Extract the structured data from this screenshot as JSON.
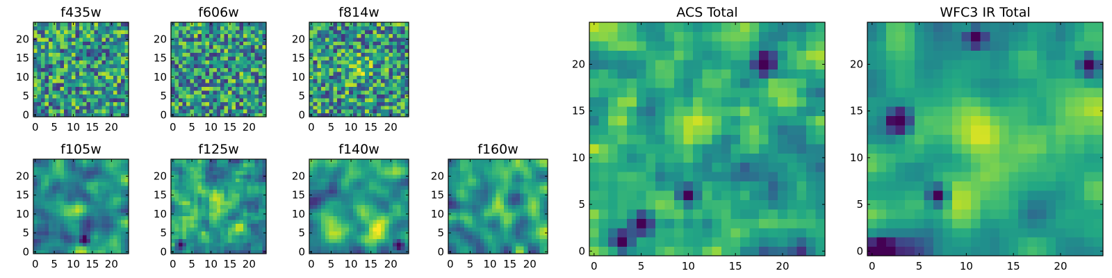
{
  "chart_data": [
    {
      "type": "heatmap",
      "title": "f435w",
      "colormap": "viridis",
      "grid_size": 25,
      "xlim": [
        0,
        24
      ],
      "ylim": [
        0,
        24
      ],
      "xticks": [
        0,
        5,
        10,
        15,
        20
      ],
      "yticks": [
        0,
        5,
        10,
        15,
        20
      ],
      "smoothness": 0,
      "bright_spot": null,
      "dark_spots": [],
      "seed": 11
    },
    {
      "type": "heatmap",
      "title": "f606w",
      "colormap": "viridis",
      "grid_size": 25,
      "xlim": [
        0,
        24
      ],
      "ylim": [
        0,
        24
      ],
      "xticks": [
        0,
        5,
        10,
        15,
        20
      ],
      "yticks": [
        0,
        5,
        10,
        15,
        20
      ],
      "smoothness": 0,
      "bright_spot": null,
      "dark_spots": [],
      "seed": 23
    },
    {
      "type": "heatmap",
      "title": "f814w",
      "colormap": "viridis",
      "grid_size": 25,
      "xlim": [
        0,
        24
      ],
      "ylim": [
        0,
        24
      ],
      "xticks": [
        0,
        5,
        10,
        15,
        20
      ],
      "yticks": [
        0,
        5,
        10,
        15,
        20
      ],
      "smoothness": 0,
      "bright_spot": [
        12,
        12
      ],
      "dark_spots": [],
      "seed": 37
    },
    {
      "type": "heatmap",
      "title": "f105w",
      "colormap": "viridis",
      "grid_size": 25,
      "xlim": [
        0,
        24
      ],
      "ylim": [
        0,
        24
      ],
      "xticks": [
        0,
        5,
        10,
        15,
        20
      ],
      "yticks": [
        0,
        5,
        10,
        15,
        20
      ],
      "smoothness": 2,
      "bright_spot": [
        11,
        11
      ],
      "dark_spots": [
        [
          13,
          3
        ]
      ],
      "seed": 41
    },
    {
      "type": "heatmap",
      "title": "f125w",
      "colormap": "viridis",
      "grid_size": 25,
      "xlim": [
        0,
        24
      ],
      "ylim": [
        0,
        24
      ],
      "xticks": [
        0,
        5,
        10,
        15,
        20
      ],
      "yticks": [
        0,
        5,
        10,
        15,
        20
      ],
      "smoothness": 1,
      "bright_spot": [
        12,
        12
      ],
      "dark_spots": [
        [
          2,
          2
        ]
      ],
      "seed": 53
    },
    {
      "type": "heatmap",
      "title": "f140w",
      "colormap": "viridis",
      "grid_size": 25,
      "xlim": [
        0,
        24
      ],
      "ylim": [
        0,
        24
      ],
      "xticks": [
        0,
        5,
        10,
        15,
        20
      ],
      "yticks": [
        0,
        5,
        10,
        15,
        20
      ],
      "smoothness": 2,
      "bright_spot": [
        16,
        6
      ],
      "dark_spots": [
        [
          22,
          2
        ]
      ],
      "seed": 67
    },
    {
      "type": "heatmap",
      "title": "f160w",
      "colormap": "viridis",
      "grid_size": 25,
      "xlim": [
        0,
        24
      ],
      "ylim": [
        0,
        24
      ],
      "xticks": [
        0,
        5,
        10,
        15,
        20
      ],
      "yticks": [
        0,
        5,
        10,
        15,
        20
      ],
      "smoothness": 2,
      "bright_spot": [
        12,
        12
      ],
      "dark_spots": [],
      "seed": 79
    },
    {
      "type": "heatmap",
      "title": "ACS Total",
      "colormap": "viridis",
      "grid_size": 25,
      "xlim": [
        0,
        24
      ],
      "ylim": [
        0,
        24
      ],
      "xticks": [
        0,
        5,
        10,
        15,
        20
      ],
      "yticks": [
        0,
        5,
        10,
        15,
        20
      ],
      "smoothness": 1,
      "bright_spot": [
        12,
        13
      ],
      "dark_spots": [
        [
          10,
          6
        ],
        [
          3,
          1
        ],
        [
          18,
          20
        ],
        [
          5,
          3
        ]
      ],
      "seed": 83
    },
    {
      "type": "heatmap",
      "title": "WFC3 IR Total",
      "colormap": "viridis",
      "grid_size": 25,
      "xlim": [
        0,
        24
      ],
      "ylim": [
        0,
        24
      ],
      "xticks": [
        0,
        5,
        10,
        15,
        20
      ],
      "yticks": [
        0,
        5,
        10,
        15,
        20
      ],
      "smoothness": 2,
      "bright_spot": [
        12,
        12
      ],
      "dark_spots": [
        [
          3,
          14
        ],
        [
          7,
          6
        ],
        [
          1,
          0
        ],
        [
          11,
          23
        ],
        [
          23,
          20
        ]
      ],
      "seed": 97
    }
  ]
}
